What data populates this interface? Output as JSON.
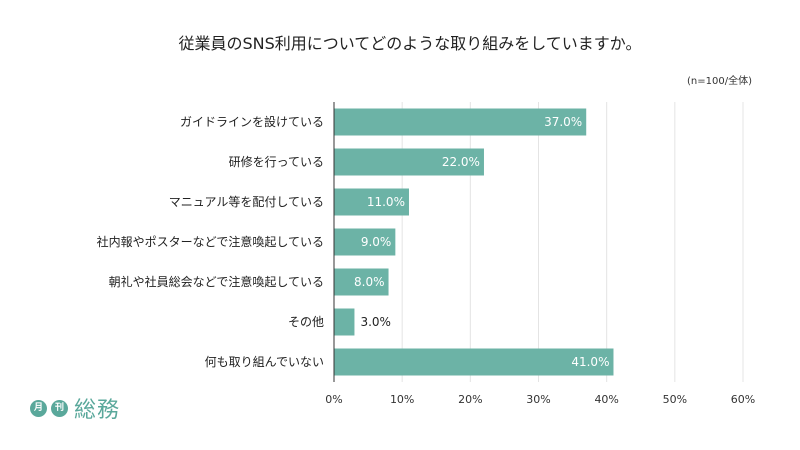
{
  "chart_data": {
    "type": "bar",
    "orientation": "horizontal",
    "title": "従業員のSNS利用についてどのような取り組みをしていますか。",
    "note": "(n=100/全体)",
    "categories": [
      "ガイドラインを設けている",
      "研修を行っている",
      "マニュアル等を配付している",
      "社内報やポスターなどで注意喚起している",
      "朝礼や社員総会などで注意喚起している",
      "その他",
      "何も取り組んでいない"
    ],
    "values": [
      37.0,
      22.0,
      11.0,
      9.0,
      8.0,
      3.0,
      41.0
    ],
    "value_labels": [
      "37.0%",
      "22.0%",
      "11.0%",
      "9.0%",
      "8.0%",
      "3.0%",
      "41.0%"
    ],
    "xlim": [
      0,
      60
    ],
    "x_ticks": [
      0,
      10,
      20,
      30,
      40,
      50,
      60
    ],
    "x_tick_labels": [
      "0%",
      "10%",
      "20%",
      "30%",
      "40%",
      "50%",
      "60%"
    ],
    "grid": true,
    "bar_color": "#6cb3a6"
  },
  "logo": {
    "badge1": "月",
    "badge2": "刊",
    "text": "総務"
  }
}
